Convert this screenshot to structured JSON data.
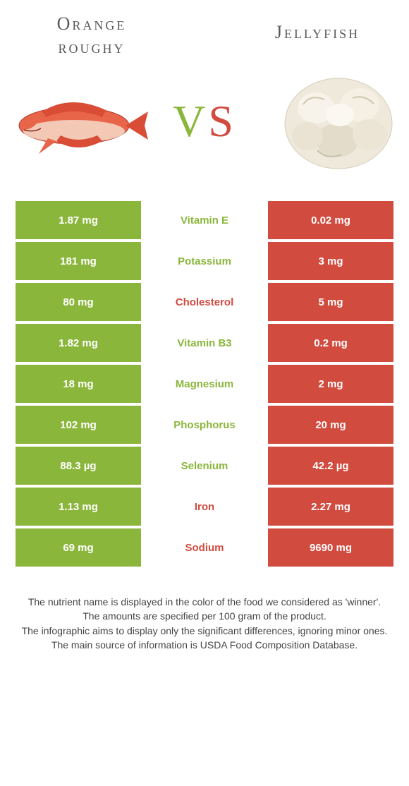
{
  "header": {
    "left_title_line1": "Orange",
    "left_title_line2": "roughy",
    "right_title": "Jellyfish"
  },
  "vs": {
    "v": "V",
    "s": "S"
  },
  "colors": {
    "left_bg": "#8bb63c",
    "right_bg": "#d14b3f",
    "mid_green": "#8bb63c",
    "mid_red": "#d14b3f"
  },
  "rows": [
    {
      "left": "1.87 mg",
      "mid": "Vitamin E",
      "mid_color": "#8bb63c",
      "right": "0.02 mg"
    },
    {
      "left": "181 mg",
      "mid": "Potassium",
      "mid_color": "#8bb63c",
      "right": "3 mg"
    },
    {
      "left": "80 mg",
      "mid": "Cholesterol",
      "mid_color": "#d14b3f",
      "right": "5 mg"
    },
    {
      "left": "1.82 mg",
      "mid": "Vitamin B3",
      "mid_color": "#8bb63c",
      "right": "0.2 mg"
    },
    {
      "left": "18 mg",
      "mid": "Magnesium",
      "mid_color": "#8bb63c",
      "right": "2 mg"
    },
    {
      "left": "102 mg",
      "mid": "Phosphorus",
      "mid_color": "#8bb63c",
      "right": "20 mg"
    },
    {
      "left": "88.3 µg",
      "mid": "Selenium",
      "mid_color": "#8bb63c",
      "right": "42.2 µg"
    },
    {
      "left": "1.13 mg",
      "mid": "Iron",
      "mid_color": "#d14b3f",
      "right": "2.27 mg"
    },
    {
      "left": "69 mg",
      "mid": "Sodium",
      "mid_color": "#d14b3f",
      "right": "9690 mg"
    }
  ],
  "footer": {
    "line1": "The nutrient name is displayed in the color of the food we considered as 'winner'.",
    "line2": "The amounts are specified per 100 gram of the product.",
    "line3": "The infographic aims to display only the significant differences, ignoring minor ones.",
    "line4": "The main source of information is USDA Food Composition Database."
  }
}
